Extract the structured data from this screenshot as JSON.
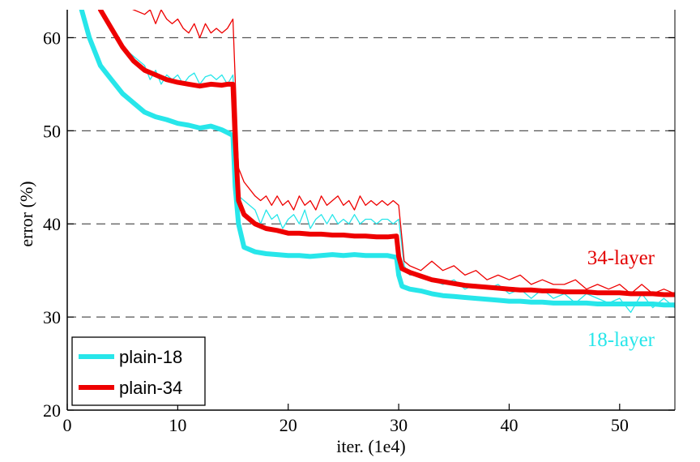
{
  "chart_data": {
    "type": "line",
    "xlabel": "iter. (1e4)",
    "ylabel": "error (%)",
    "xlim": [
      0,
      55
    ],
    "ylim": [
      20,
      63
    ],
    "xticks": [
      0,
      10,
      20,
      30,
      40,
      50
    ],
    "yticks": [
      20,
      30,
      40,
      50,
      60
    ],
    "grid": "dashed horizontal at 30, 40, 50, 60",
    "legend": {
      "placement": "bottom-left",
      "entries": [
        {
          "label": "plain-18",
          "color": "#27e6ea"
        },
        {
          "label": "plain-34",
          "color": "#ee0000"
        }
      ]
    },
    "annotations": [
      {
        "text": "34-layer",
        "color": "#e30000",
        "x": 50,
        "y": 36
      },
      {
        "text": "18-layer",
        "color": "#27e6ea",
        "x": 50,
        "y": 28.5
      }
    ],
    "series": [
      {
        "name": "plain-18",
        "role": "validation",
        "color": "#27e6ea",
        "x": [
          1.3,
          2,
          3,
          4,
          5,
          6,
          7,
          8,
          9,
          10,
          11,
          12,
          13,
          14,
          14.5,
          15,
          15.2,
          15.5,
          16,
          17,
          18,
          19,
          20,
          21,
          22,
          23,
          24,
          25,
          26,
          27,
          28,
          29,
          29.8,
          30,
          30.3,
          31,
          32,
          33,
          34,
          35,
          36,
          37,
          38,
          39,
          40,
          41,
          42,
          43,
          44,
          45,
          46,
          47,
          48,
          49,
          50,
          51,
          52,
          53,
          54,
          55
        ],
        "y": [
          63,
          60,
          57,
          55.5,
          54,
          53,
          52,
          51.5,
          51.2,
          50.8,
          50.6,
          50.3,
          50.5,
          50.1,
          49.8,
          49.5,
          44,
          40,
          37.5,
          37,
          36.8,
          36.7,
          36.6,
          36.6,
          36.5,
          36.6,
          36.7,
          36.6,
          36.7,
          36.6,
          36.6,
          36.6,
          36.4,
          34.5,
          33.3,
          33,
          32.8,
          32.5,
          32.3,
          32.2,
          32.1,
          32,
          31.9,
          31.8,
          31.7,
          31.7,
          31.6,
          31.6,
          31.5,
          31.5,
          31.5,
          31.5,
          31.4,
          31.4,
          31.4,
          31.4,
          31.4,
          31.4,
          31.3,
          31.3
        ]
      },
      {
        "name": "plain-34",
        "role": "validation",
        "color": "#ee0000",
        "x": [
          3,
          4,
          5,
          6,
          7,
          8,
          9,
          10,
          11,
          12,
          13,
          14,
          14.5,
          15,
          15.2,
          15.5,
          16,
          17,
          18,
          19,
          20,
          21,
          22,
          23,
          24,
          25,
          26,
          27,
          28,
          29,
          29.8,
          30,
          30.3,
          31,
          32,
          33,
          34,
          35,
          36,
          37,
          38,
          39,
          40,
          41,
          42,
          43,
          44,
          45,
          46,
          47,
          48,
          49,
          50,
          51,
          52,
          53,
          54,
          55
        ],
        "y": [
          63,
          61,
          59,
          57.5,
          56.5,
          56,
          55.5,
          55.2,
          55,
          54.8,
          55,
          54.9,
          55,
          55,
          49,
          42.5,
          41,
          40,
          39.5,
          39.3,
          39,
          39,
          38.9,
          38.9,
          38.8,
          38.8,
          38.7,
          38.7,
          38.6,
          38.6,
          38.7,
          36.5,
          35.2,
          34.8,
          34.4,
          34,
          33.8,
          33.6,
          33.4,
          33.3,
          33.2,
          33.1,
          33,
          32.9,
          32.9,
          32.8,
          32.8,
          32.7,
          32.7,
          32.7,
          32.6,
          32.6,
          32.6,
          32.5,
          32.5,
          32.5,
          32.4,
          32.4
        ]
      },
      {
        "name": "plain-18",
        "role": "training",
        "color": "#27e6ea",
        "x": [
          5,
          6,
          7,
          7.5,
          8,
          8.5,
          9,
          9.5,
          10,
          10.5,
          11,
          11.5,
          12,
          12.5,
          13,
          13.5,
          14,
          14.5,
          15,
          15.5,
          16,
          17,
          17.5,
          18,
          18.5,
          19,
          19.5,
          20,
          20.5,
          21,
          21.5,
          22,
          22.5,
          23,
          23.5,
          24,
          24.5,
          25,
          25.5,
          26,
          26.5,
          27,
          27.5,
          28,
          28.5,
          29,
          29.5,
          30,
          30.5,
          31,
          32,
          33,
          34,
          35,
          36,
          37,
          38,
          39,
          40,
          41,
          42,
          43,
          44,
          45,
          46,
          47,
          48,
          49,
          50,
          51,
          52,
          53,
          54,
          55
        ],
        "y": [
          59,
          58,
          57,
          55.5,
          56.5,
          55,
          56,
          55.5,
          56,
          55,
          55.8,
          56.2,
          55,
          55.8,
          56,
          55.5,
          56,
          55,
          56,
          43,
          42.5,
          41.5,
          40,
          41.5,
          40.5,
          41,
          39.5,
          40.5,
          41,
          40,
          41.5,
          39.5,
          40.5,
          41,
          40,
          41,
          40,
          40.5,
          40,
          41,
          40,
          40.5,
          40.5,
          40,
          40.5,
          40.5,
          40,
          40.5,
          35.5,
          34.5,
          34.5,
          34,
          33.5,
          34,
          33,
          33.5,
          33,
          33.5,
          32.5,
          33,
          32,
          33,
          32,
          32.5,
          31.5,
          32.5,
          32,
          31.5,
          32,
          30.5,
          32.5,
          31,
          32,
          31
        ]
      },
      {
        "name": "plain-34",
        "role": "training",
        "color": "#ee0000",
        "x": [
          5,
          6,
          7,
          7.5,
          8,
          8.5,
          9,
          9.5,
          10,
          10.5,
          11,
          11.5,
          12,
          12.5,
          13,
          13.5,
          14,
          14.5,
          15,
          15.5,
          16,
          17,
          17.5,
          18,
          18.5,
          19,
          19.5,
          20,
          20.5,
          21,
          21.5,
          22,
          22.5,
          23,
          23.5,
          24,
          24.5,
          25,
          25.5,
          26,
          26.5,
          27,
          27.5,
          28,
          28.5,
          29,
          29.5,
          30,
          30.5,
          31,
          32,
          33,
          34,
          35,
          36,
          37,
          38,
          39,
          40,
          41,
          42,
          43,
          44,
          45,
          46,
          47,
          48,
          49,
          50,
          51,
          52,
          53,
          54,
          55
        ],
        "y": [
          63.5,
          63,
          62.5,
          63,
          61.5,
          63,
          62,
          61.5,
          62,
          61,
          60.5,
          61.5,
          60,
          61.5,
          60.5,
          61,
          60.5,
          61,
          62,
          46,
          44.5,
          43,
          42.5,
          43,
          42,
          43,
          42,
          42.5,
          41.5,
          43,
          42,
          42.5,
          41.5,
          43,
          42,
          42.5,
          43,
          42,
          42.5,
          41.5,
          43,
          42,
          42.5,
          42,
          42.5,
          42,
          42.5,
          42,
          36,
          35.5,
          35,
          36,
          35,
          35.5,
          34.5,
          35,
          34,
          34.5,
          34,
          34.5,
          33.5,
          34,
          33.5,
          33.5,
          34,
          33,
          33.5,
          33,
          33.5,
          32.5,
          33.5,
          32.5,
          33,
          32.5
        ]
      }
    ]
  }
}
